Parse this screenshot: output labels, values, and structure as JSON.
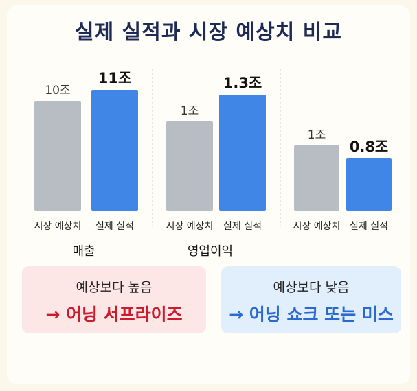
{
  "title": "실제 실적과 시장 예상치 비교",
  "colors": {
    "expected": "#b8bcc3",
    "actual": "#3f86e6",
    "surprise": "#cc1b2c",
    "miss": "#2a69cf",
    "text": "#1d2a55"
  },
  "chart_data": {
    "type": "bar",
    "ylabel": "",
    "grid": false,
    "groups": [
      {
        "label": "매출",
        "bars": [
          {
            "category": "시장 예상치",
            "value": 10,
            "label": "10조",
            "kind": "expected"
          },
          {
            "category": "실제 실적",
            "value": 11,
            "label": "11조",
            "kind": "actual"
          }
        ]
      },
      {
        "label": "영업이익",
        "bars": [
          {
            "category": "시장 예상치",
            "value": 1,
            "label": "1조",
            "kind": "expected"
          },
          {
            "category": "실제 실적",
            "value": 1.3,
            "label": "1.3조",
            "kind": "actual"
          }
        ]
      },
      {
        "label": "",
        "bars": [
          {
            "category": "시장 예상치",
            "value": 1,
            "label": "1조",
            "kind": "expected"
          },
          {
            "category": "실제 실적",
            "value": 0.8,
            "label": "0.8조",
            "kind": "actual"
          }
        ]
      }
    ]
  },
  "callouts": {
    "positive": {
      "line1": "예상보다 높음",
      "line2": "→ 어닝 서프라이즈"
    },
    "negative": {
      "line1": "예상보다 낮음",
      "line2": "→ 어닝 쇼크 또는 미스"
    }
  }
}
